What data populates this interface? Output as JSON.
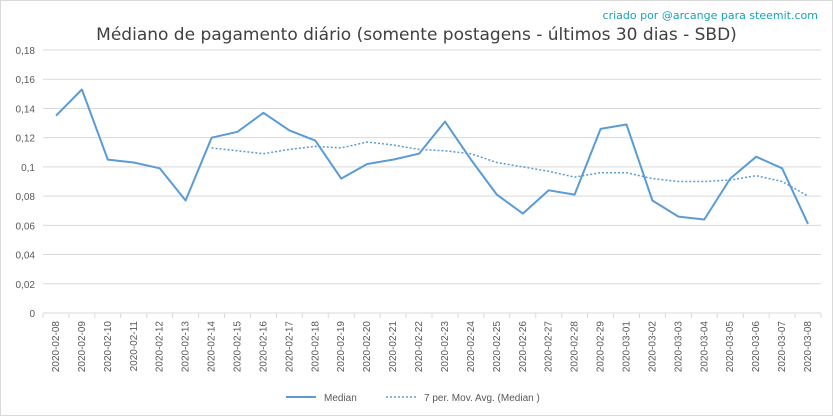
{
  "watermark": "criado por @arcange para steemit.com",
  "chart_data": {
    "type": "line",
    "title": "Médiano de pagamento diário (somente postagens - últimos 30 dias - SBD)",
    "xlabel": "",
    "ylabel": "",
    "ylim": [
      0,
      0.18
    ],
    "yticks": [
      "0",
      "0,02",
      "0,04",
      "0,06",
      "0,08",
      "0,1",
      "0,12",
      "0,14",
      "0,16",
      "0,18"
    ],
    "grid": true,
    "legend_position": "bottom",
    "categories": [
      "2020-02-08",
      "2020-02-09",
      "2020-02-10",
      "2020-02-11",
      "2020-02-12",
      "2020-02-13",
      "2020-02-14",
      "2020-02-15",
      "2020-02-16",
      "2020-02-17",
      "2020-02-18",
      "2020-02-19",
      "2020-02-20",
      "2020-02-21",
      "2020-02-22",
      "2020-02-23",
      "2020-02-24",
      "2020-02-25",
      "2020-02-26",
      "2020-02-27",
      "2020-02-28",
      "2020-02-29",
      "2020-03-01",
      "2020-03-02",
      "2020-03-03",
      "2020-03-04",
      "2020-03-05",
      "2020-03-06",
      "2020-03-07",
      "2020-03-08"
    ],
    "series": [
      {
        "name": "Median",
        "color": "#5b9bd5",
        "style": "solid",
        "values": [
          0.135,
          0.153,
          0.105,
          0.103,
          0.099,
          0.077,
          0.12,
          0.124,
          0.137,
          0.125,
          0.118,
          0.092,
          0.102,
          0.105,
          0.109,
          0.131,
          0.105,
          0.081,
          0.068,
          0.084,
          0.081,
          0.126,
          0.129,
          0.077,
          0.066,
          0.064,
          0.092,
          0.107,
          0.099,
          0.061
        ]
      },
      {
        "name": "7 per. Mov. Avg. (Median )",
        "color": "#5b9bd5",
        "style": "dotted",
        "values": [
          null,
          null,
          null,
          null,
          null,
          null,
          0.113,
          0.111,
          0.109,
          0.112,
          0.114,
          0.113,
          0.117,
          0.115,
          0.112,
          0.111,
          0.109,
          0.103,
          0.1,
          0.097,
          0.093,
          0.096,
          0.096,
          0.092,
          0.09,
          0.09,
          0.091,
          0.094,
          0.09,
          0.08
        ]
      }
    ]
  }
}
